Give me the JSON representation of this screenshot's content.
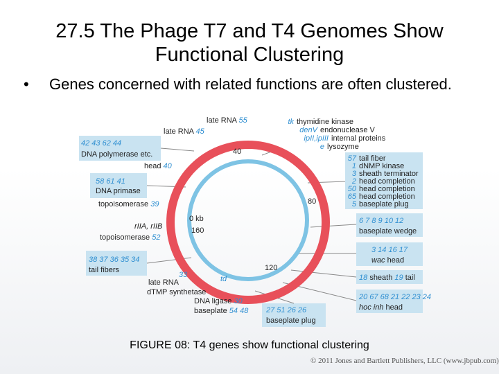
{
  "slide": {
    "title_line1": "27.5  The Phage T7 and T4 Genomes Show",
    "title_line2": "Functional Clustering",
    "bullet_marker": "•",
    "bullet_text": "Genes concerned with related functions are often clustered.",
    "caption": "FIGURE 08: T4 genes show functional clustering",
    "credit": "© 2011 Jones and Bartlett Publishers, LLC (www.jbpub.com)"
  },
  "colors": {
    "outer_ring": "#e8505a",
    "inner_ring": "#7ec3e4",
    "box_fill": "#c9e3f1",
    "gene_blue": "#2f8fd1",
    "connector": "#888888"
  },
  "diagram": {
    "kb_marks": {
      "k0": "0 kb",
      "k40": "40",
      "k80": "80",
      "k120": "120",
      "k160": "160"
    },
    "late_rna_55": {
      "label": "late RNA",
      "gene": "55"
    },
    "late_rna_45": {
      "label": "late RNA",
      "gene": "45"
    },
    "dna_pol": {
      "genes": "42  43  62  44",
      "label": "DNA polymerase etc."
    },
    "head_40": {
      "label": "head",
      "gene": "40"
    },
    "primase": {
      "genes": "58  61  41",
      "label": "DNA primase"
    },
    "topo_39": {
      "label": "topoisomerase",
      "gene": "39"
    },
    "r_genes": {
      "label": "rIIA, rIIB"
    },
    "topo_52": {
      "label": "topoisomerase",
      "gene": "52"
    },
    "tail_fibers": {
      "genes": "38 37 36 35 34",
      "label": "tail fibers"
    },
    "late_rna_33": {
      "gene": "33",
      "label": "late RNA"
    },
    "td": {
      "gene": "td",
      "label": "dTMP synthetase"
    },
    "ligase": {
      "label": "DNA ligase",
      "gene": "30"
    },
    "baseplate_54": {
      "label": "baseplate",
      "gene": "54 48"
    },
    "baseplate_plug": {
      "genes": "27 51 26 26",
      "label": "baseplate plug"
    },
    "head_hoc": {
      "genes": "20 67 68 21 22 23 24",
      "label_a": "hoc inh",
      "label_b": "head"
    },
    "sheath_tail": {
      "g1": "18",
      "l1": "sheath",
      "g2": "19",
      "l2": "tail"
    },
    "wac_head": {
      "genes": "3 14 16 17",
      "label_a": "wac",
      "label_b": "head"
    },
    "baseplate_wedge": {
      "genes": "6  7  8  9  10  12",
      "label": "baseplate wedge"
    },
    "enzymes": [
      {
        "gene": "tk",
        "label": "thymidine kinase"
      },
      {
        "gene": "denV",
        "label": "endonuclease V"
      },
      {
        "gene": "ipII,ipIII",
        "label": "internal proteins"
      },
      {
        "gene": "e",
        "label": "lysozyme"
      }
    ],
    "right_box": [
      {
        "gene": "57",
        "label": "tail fiber"
      },
      {
        "gene": "1",
        "label": "dNMP kinase"
      },
      {
        "gene": "3",
        "label": "sheath terminator"
      },
      {
        "gene": "2",
        "label": "head completion"
      },
      {
        "gene": "50",
        "label": "head completion"
      },
      {
        "gene": "65",
        "label": "head completion"
      },
      {
        "gene": "5",
        "label": "baseplate plug"
      }
    ]
  }
}
